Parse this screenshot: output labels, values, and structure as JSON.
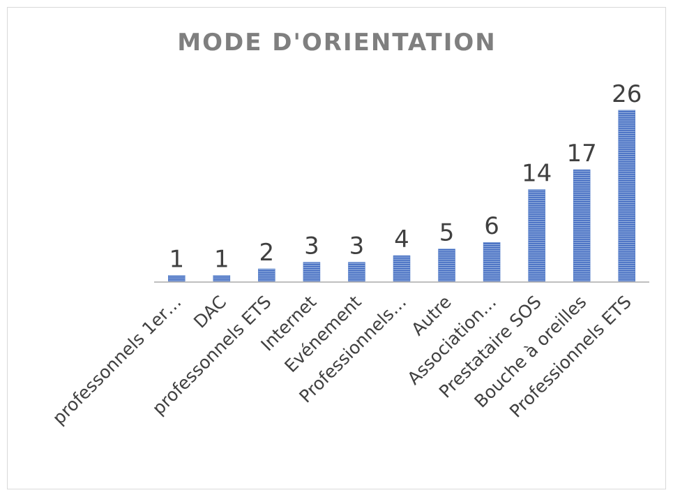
{
  "chart_data": {
    "type": "bar",
    "title": "MODE D'ORIENTATION",
    "categories": [
      "professonnels 1er…",
      "DAC",
      "professonnels ETS",
      "Internet",
      "Evénement",
      "Professionnels…",
      "Autre",
      "Association…",
      "Prestataire SOS",
      "Bouche à oreilles",
      "Professionnels ETS"
    ],
    "values": [
      1,
      1,
      2,
      3,
      3,
      4,
      5,
      6,
      14,
      17,
      26
    ],
    "color": "#4472c4",
    "ylim": [
      0,
      30
    ]
  }
}
